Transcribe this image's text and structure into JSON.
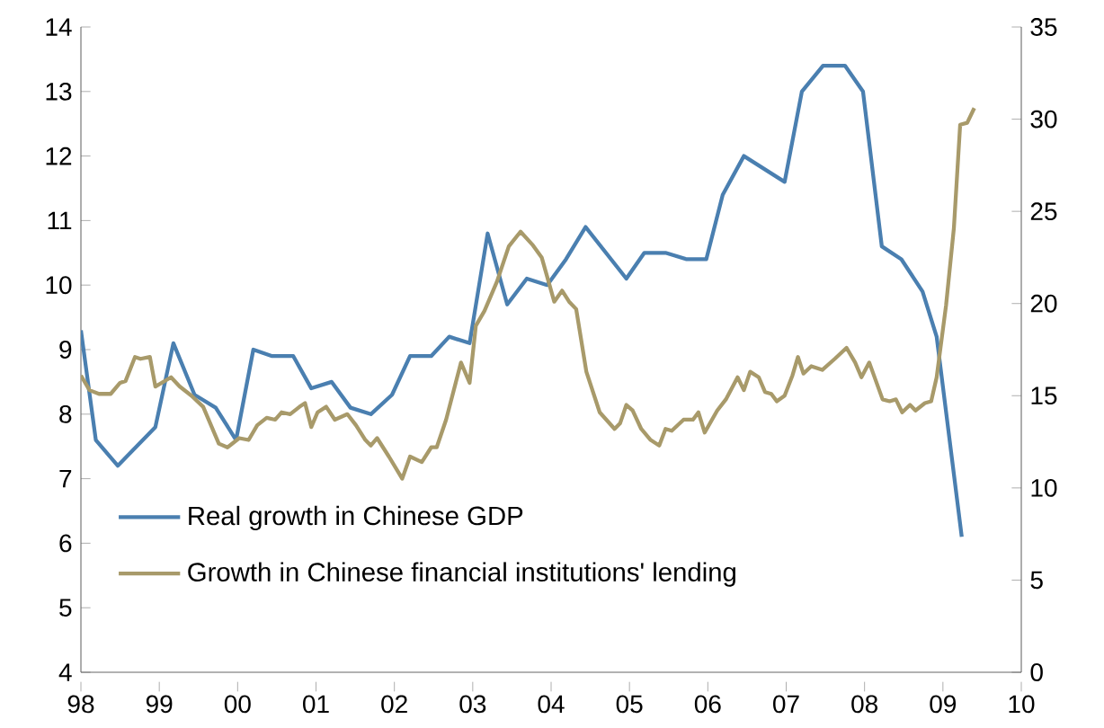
{
  "chart_data": {
    "type": "line",
    "legend": "bottom left",
    "xlim": [
      1998,
      2010
    ],
    "xticks": [
      {
        "value": 1998,
        "label": "98"
      },
      {
        "value": 1999,
        "label": "99"
      },
      {
        "value": 2000,
        "label": "00"
      },
      {
        "value": 2001,
        "label": "01"
      },
      {
        "value": 2002,
        "label": "02"
      },
      {
        "value": 2003,
        "label": "03"
      },
      {
        "value": 2004,
        "label": "04"
      },
      {
        "value": 2005,
        "label": "05"
      },
      {
        "value": 2006,
        "label": "06"
      },
      {
        "value": 2007,
        "label": "07"
      },
      {
        "value": 2008,
        "label": "08"
      },
      {
        "value": 2009,
        "label": "09"
      },
      {
        "value": 2010,
        "label": "10"
      }
    ],
    "ylim": [
      4,
      14
    ],
    "yticks": [
      4,
      5,
      6,
      7,
      8,
      9,
      10,
      11,
      12,
      13,
      14
    ],
    "y2lim": [
      0,
      35
    ],
    "y2ticks": [
      0,
      5,
      10,
      15,
      20,
      25,
      30,
      35
    ],
    "series": [
      {
        "name": "Real growth in Chinese GDP",
        "color": "#4a7fb0",
        "axis": "y",
        "x": [
          1998.0,
          1998.19,
          1998.47,
          1998.95,
          1999.18,
          1999.45,
          1999.72,
          1999.98,
          2000.2,
          2000.44,
          2000.71,
          2000.94,
          2001.2,
          2001.44,
          2001.7,
          2001.97,
          2002.2,
          2002.47,
          2002.7,
          2002.96,
          2003.19,
          2003.44,
          2003.69,
          2003.95,
          2004.19,
          2004.44,
          2004.96,
          2005.19,
          2005.46,
          2005.73,
          2005.98,
          2006.19,
          2006.46,
          2006.98,
          2007.2,
          2007.47,
          2007.75,
          2007.98,
          2008.22,
          2008.47,
          2008.74,
          2008.92,
          2009.24
        ],
        "values": [
          9.3,
          7.6,
          7.2,
          7.8,
          9.1,
          8.3,
          8.1,
          7.6,
          9.0,
          8.9,
          8.9,
          8.4,
          8.5,
          8.1,
          8.0,
          8.3,
          8.9,
          8.9,
          9.2,
          9.1,
          10.8,
          9.7,
          10.1,
          10.0,
          10.4,
          10.9,
          10.1,
          10.5,
          10.5,
          10.4,
          10.4,
          11.4,
          12.0,
          11.6,
          13.0,
          13.4,
          13.4,
          13.0,
          10.6,
          10.4,
          9.9,
          9.2,
          6.1
        ]
      },
      {
        "name": "Growth in Chinese financial institutions' lending",
        "color": "#a89a6a",
        "axis": "y2",
        "x": [
          1998.0,
          1998.11,
          1998.23,
          1998.38,
          1998.5,
          1998.57,
          1998.69,
          1998.76,
          1998.88,
          1998.95,
          1999.15,
          1999.26,
          1999.41,
          1999.56,
          1999.76,
          1999.87,
          2000.02,
          2000.14,
          2000.25,
          2000.37,
          2000.48,
          2000.56,
          2000.67,
          2000.79,
          2000.86,
          2000.94,
          2001.02,
          2001.13,
          2001.24,
          2001.4,
          2001.51,
          2001.63,
          2001.7,
          2001.78,
          2001.93,
          2002.1,
          2002.2,
          2002.35,
          2002.47,
          2002.54,
          2002.66,
          2002.85,
          2002.96,
          2003.04,
          2003.15,
          2003.31,
          2003.46,
          2003.61,
          2003.76,
          2003.88,
          2004.04,
          2004.14,
          2004.23,
          2004.32,
          2004.45,
          2004.62,
          2004.81,
          2004.88,
          2004.96,
          2005.04,
          2005.15,
          2005.27,
          2005.38,
          2005.46,
          2005.54,
          2005.69,
          2005.81,
          2005.88,
          2005.96,
          2006.12,
          2006.23,
          2006.38,
          2006.46,
          2006.54,
          2006.65,
          2006.73,
          2006.81,
          2006.88,
          2006.98,
          2007.08,
          2007.15,
          2007.22,
          2007.32,
          2007.46,
          2007.62,
          2007.77,
          2007.88,
          2007.96,
          2008.06,
          2008.23,
          2008.32,
          2008.4,
          2008.48,
          2008.58,
          2008.65,
          2008.77,
          2008.85,
          2008.92,
          2009.04,
          2009.14,
          2009.22,
          2009.31,
          2009.4
        ],
        "values": [
          16.1,
          15.3,
          15.1,
          15.1,
          15.7,
          15.8,
          17.1,
          17.0,
          17.1,
          15.5,
          16.0,
          15.5,
          15.0,
          14.4,
          12.4,
          12.2,
          12.7,
          12.6,
          13.4,
          13.8,
          13.7,
          14.1,
          14.0,
          14.4,
          14.6,
          13.3,
          14.1,
          14.4,
          13.7,
          14.0,
          13.4,
          12.6,
          12.3,
          12.7,
          11.7,
          10.5,
          11.7,
          11.4,
          12.2,
          12.2,
          13.7,
          16.8,
          15.7,
          18.8,
          19.6,
          21.2,
          23.1,
          23.9,
          23.2,
          22.5,
          20.1,
          20.7,
          20.1,
          19.7,
          16.3,
          14.1,
          13.2,
          13.5,
          14.5,
          14.2,
          13.2,
          12.6,
          12.3,
          13.2,
          13.1,
          13.7,
          13.7,
          14.1,
          13.0,
          14.2,
          14.8,
          16.0,
          15.3,
          16.3,
          16.0,
          15.2,
          15.1,
          14.7,
          15.0,
          16.1,
          17.1,
          16.2,
          16.6,
          16.4,
          17.0,
          17.6,
          16.8,
          16.0,
          16.8,
          14.8,
          14.7,
          14.8,
          14.1,
          14.5,
          14.2,
          14.6,
          14.7,
          16.0,
          19.9,
          24.1,
          29.7,
          29.8,
          30.6
        ]
      }
    ]
  }
}
